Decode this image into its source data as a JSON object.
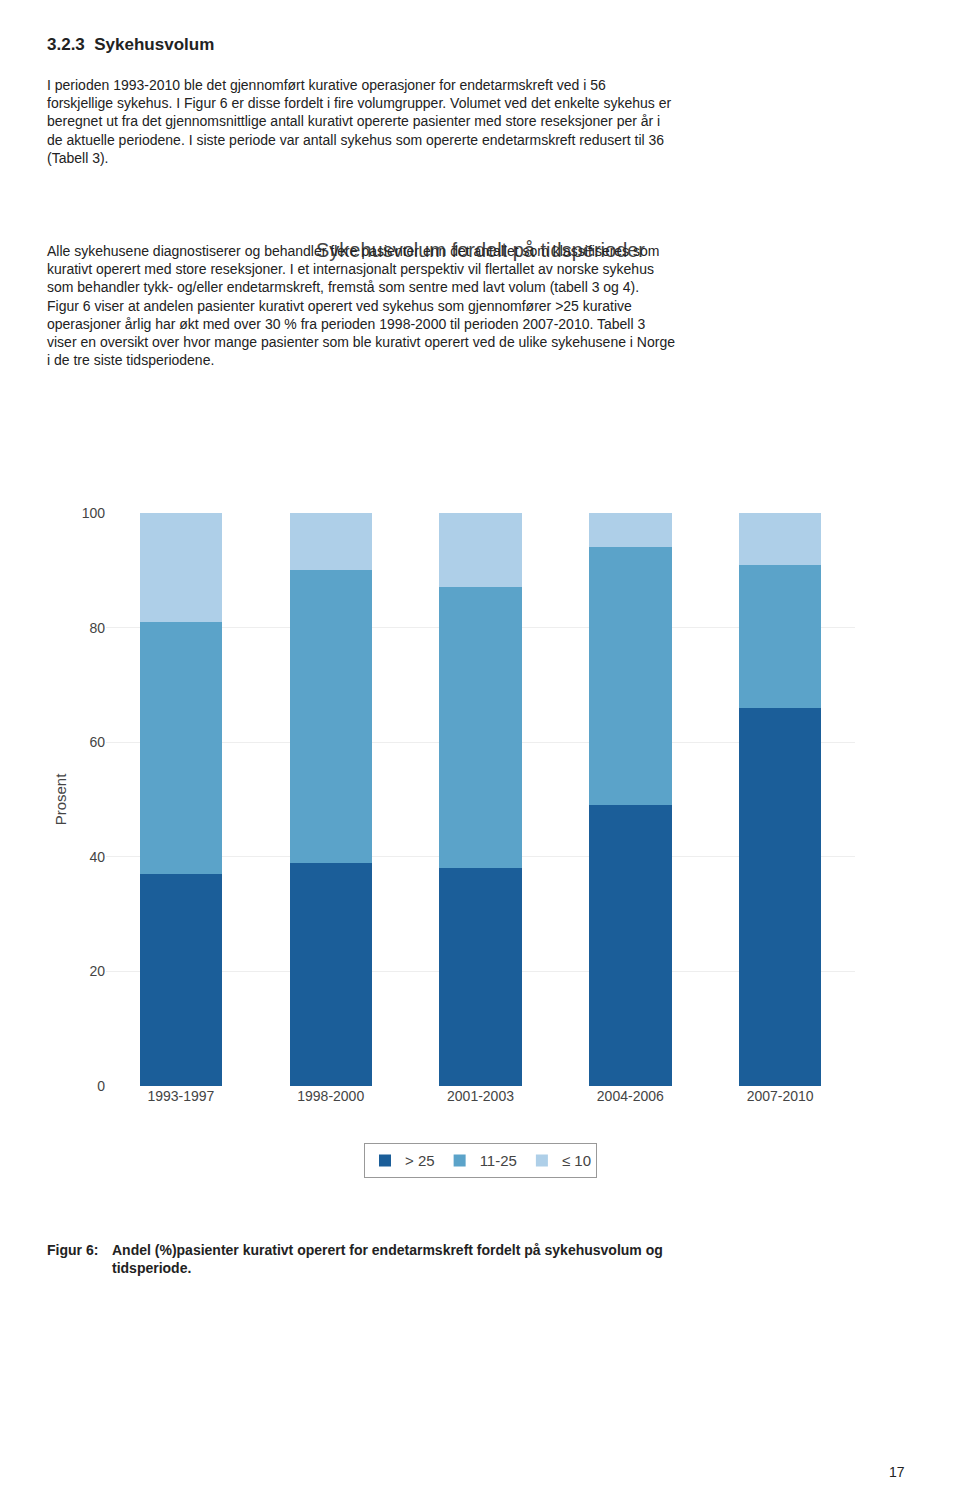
{
  "chart_data": {
    "type": "bar",
    "stacked": true,
    "title": "Sykehusvolum fordelt på tidsperioder",
    "ylabel": "Prosent",
    "categories": [
      "1993-1997",
      "1998-2000",
      "2001-2003",
      "2004-2006",
      "2007-2010"
    ],
    "series": [
      {
        "name": "> 25",
        "color": "#1B5E99",
        "values": [
          37,
          39,
          38,
          49,
          66
        ]
      },
      {
        "name": "11-25",
        "color": "#5BA3C9",
        "values": [
          44,
          51,
          49,
          45,
          25
        ]
      },
      {
        "name": "≤ 10",
        "color": "#AECFE8",
        "values": [
          19,
          10,
          13,
          6,
          9
        ]
      }
    ],
    "ylim": [
      0,
      100
    ],
    "yticks": [
      0,
      20,
      40,
      60,
      80,
      100
    ],
    "grid": true,
    "legend": "bottom",
    "annotations": [
      "3.2.3  Sykehusvolum",
      "I perioden 1993-2010 ble det gjennomført kurative operasjoner for endetarmskreft ved i 56\nforskjellige sykehus. I Figur 6 er disse fordelt i fire volumgrupper. Volumet ved det enkelte sykehus er\nberegnet ut fra det gjennomsnittlige antall kurativt opererte pasienter med store reseksjoner per år i\nde aktuelle periodene. I siste periode var antall sykehus som opererte endetarmskreft redusert til 36\n(Tabell 3).",
      "Alle sykehusene diagnostiserer og behandler flere pasienter enn det antallet som klassifiseres som\nkurativt operert med store reseksjoner. I et internasjonalt perspektiv vil flertallet av norske sykehus\nsom behandler tykk- og/eller endetarmskreft, fremstå som sentre med lavt volum (tabell 3 og 4).\nFigur 6 viser at andelen pasienter kurativt operert ved sykehus som gjennomfører >25 kurative\noperasjoner årlig har økt med over 30 % fra perioden 1998-2000 til perioden 2007-2010. Tabell 3\nviser en oversikt over hvor mange pasienter som ble kurativt operert ved de ulike sykehusene i Norge\ni de tre siste tidsperiodene.",
      "Figur 6:",
      "Andel (%)pasienter kurativt operert for endetarmskreft fordelt på sykehusvolum og\ntidsperiode.",
      "17"
    ]
  }
}
